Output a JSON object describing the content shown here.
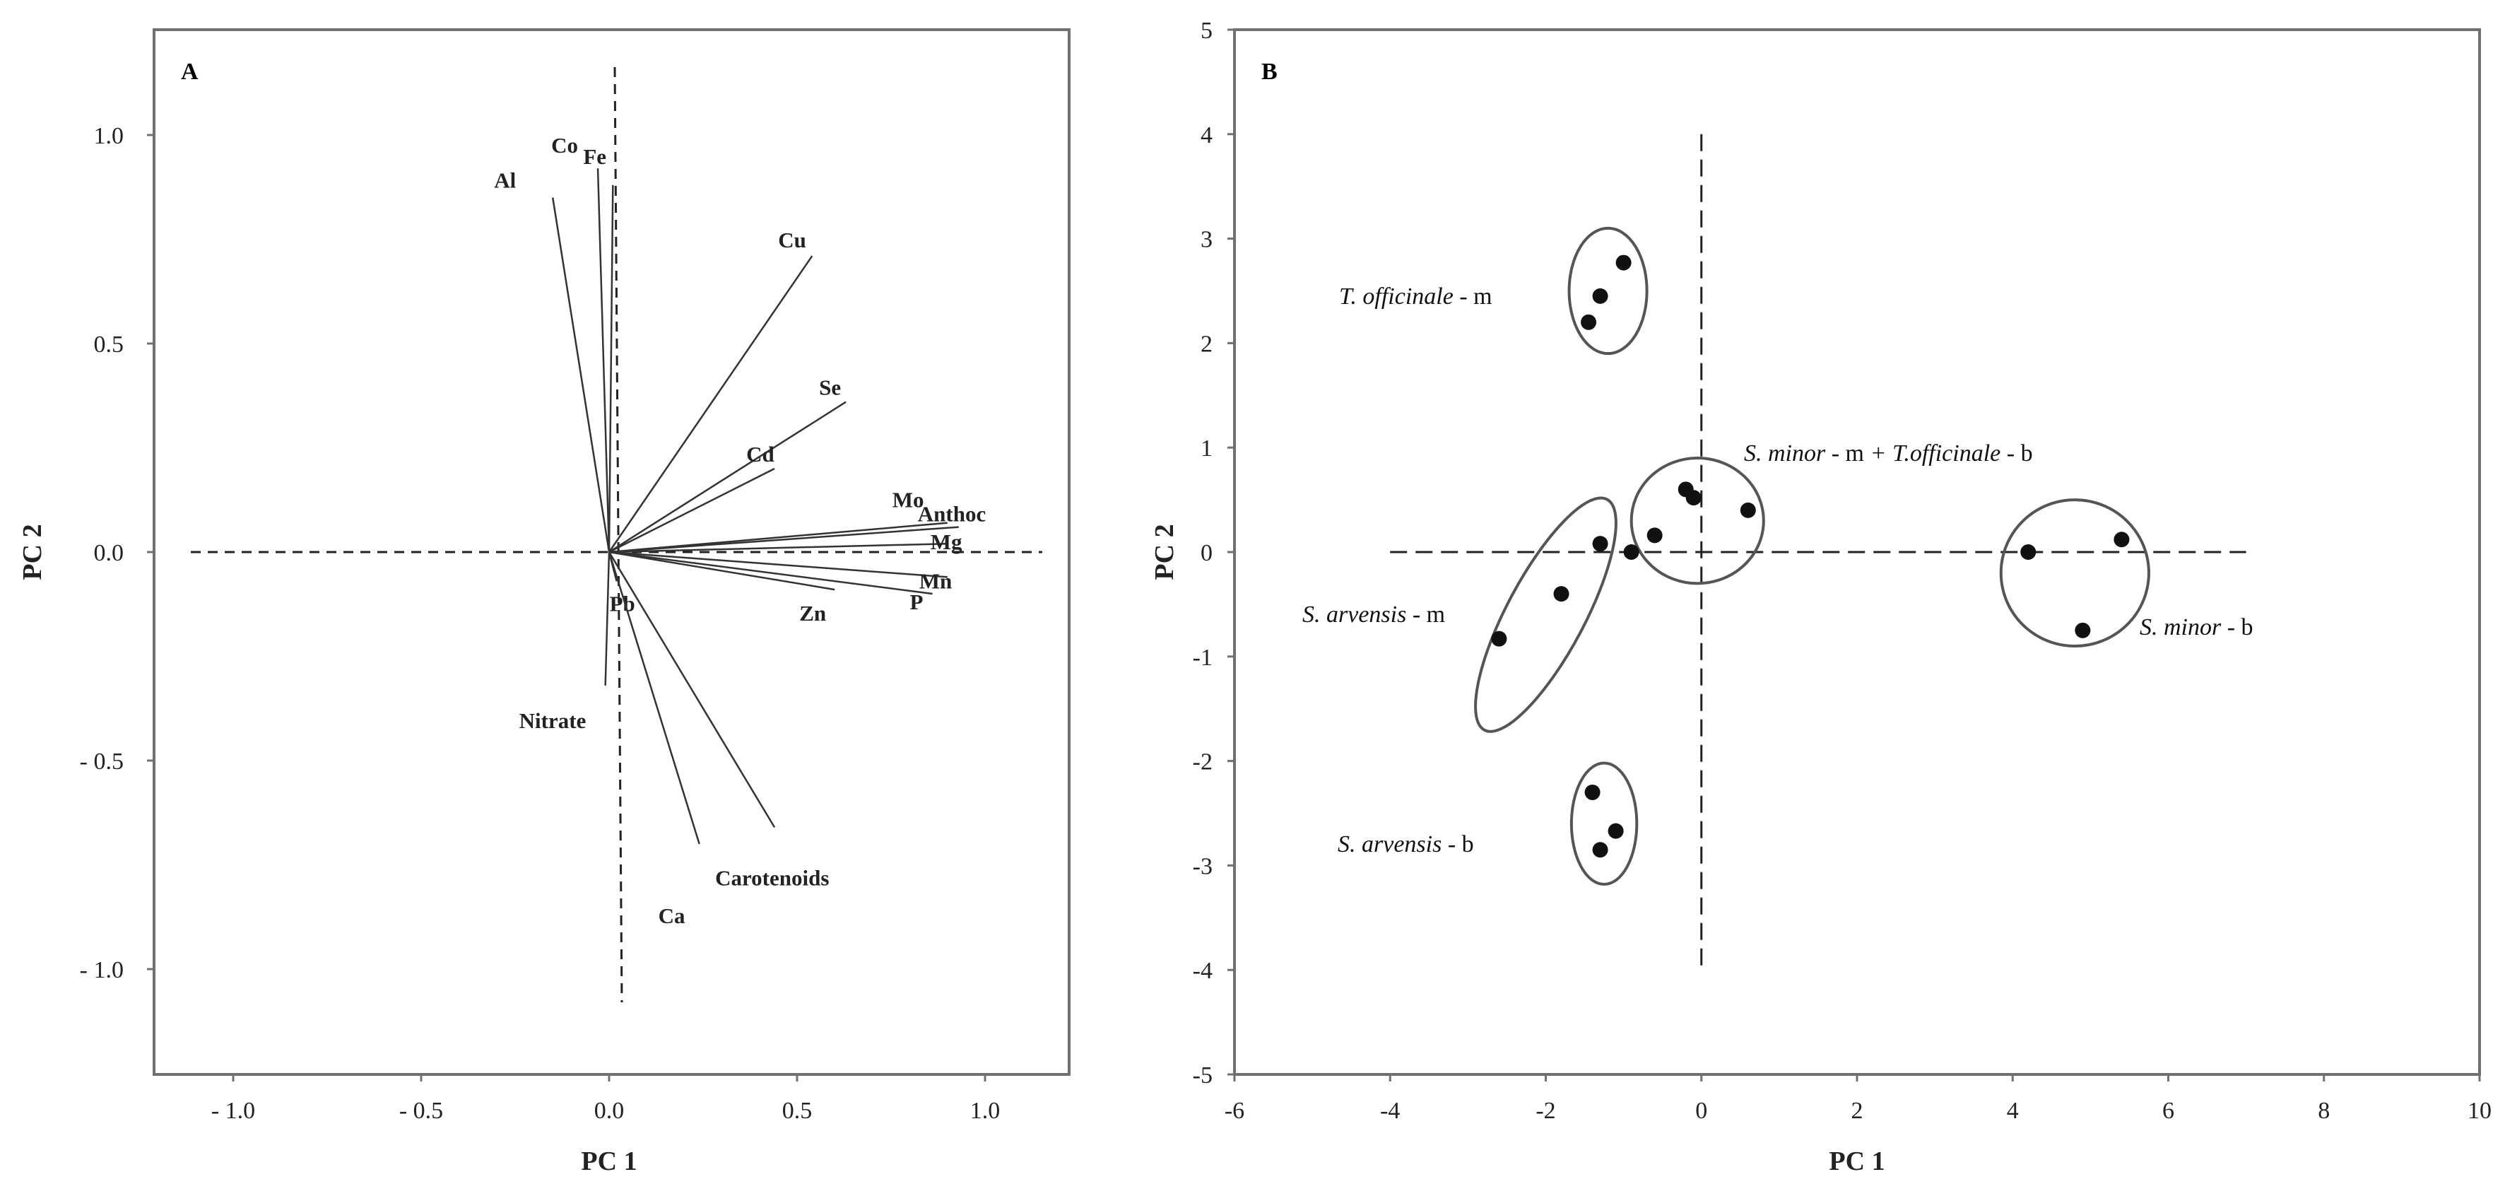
{
  "panels": [
    {
      "label": "A",
      "xlabel": "PC 1",
      "ylabel": "PC 2",
      "x_ticks": [
        "- 1.0",
        "- 0.5",
        "0.0",
        "0.5",
        "1.0"
      ],
      "y_ticks": [
        "1.0",
        "0.5",
        "0.0",
        "- 0.5",
        "- 1.0"
      ]
    },
    {
      "label": "B",
      "xlabel": "PC 1",
      "ylabel": "PC 2",
      "x_ticks": [
        "-6",
        "-4",
        "-2",
        "0",
        "2",
        "4",
        "6",
        "8",
        "10"
      ],
      "y_ticks": [
        "5",
        "4",
        "3",
        "2",
        "1",
        "0",
        "-1",
        "-2",
        "-3",
        "-4",
        "-5"
      ]
    }
  ],
  "chart_data": [
    {
      "type": "scatter",
      "subtype": "biplot-loadings",
      "title": "",
      "xlabel": "PC 1",
      "ylabel": "PC 2",
      "xlim": [
        -1.05,
        1.05
      ],
      "ylim": [
        -1.1,
        1.1
      ],
      "grid": false,
      "vectors": [
        {
          "name": "Al",
          "x": -0.15,
          "y": 0.85
        },
        {
          "name": "Co",
          "x": -0.03,
          "y": 0.92
        },
        {
          "name": "Fe",
          "x": 0.01,
          "y": 0.88
        },
        {
          "name": "Cu",
          "x": 0.54,
          "y": 0.71
        },
        {
          "name": "Se",
          "x": 0.63,
          "y": 0.36
        },
        {
          "name": "Cd",
          "x": 0.44,
          "y": 0.2
        },
        {
          "name": "Mo",
          "x": 0.9,
          "y": 0.07
        },
        {
          "name": "Anthoc",
          "x": 0.93,
          "y": 0.06
        },
        {
          "name": "Mg",
          "x": 0.9,
          "y": 0.02
        },
        {
          "name": "Mn",
          "x": 0.9,
          "y": -0.06
        },
        {
          "name": "P",
          "x": 0.86,
          "y": -0.1
        },
        {
          "name": "Zn",
          "x": 0.6,
          "y": -0.09
        },
        {
          "name": "Pb",
          "x": 0.02,
          "y": -0.07
        },
        {
          "name": "Nitrate",
          "x": -0.01,
          "y": -0.32
        },
        {
          "name": "Ca",
          "x": 0.24,
          "y": -0.7
        },
        {
          "name": "Carotenoids",
          "x": 0.44,
          "y": -0.66
        }
      ],
      "reference_lines": {
        "x": 0.0,
        "y": 0.0
      }
    },
    {
      "type": "scatter",
      "title": "",
      "xlabel": "PC 1",
      "ylabel": "PC 2",
      "xlim": [
        -6,
        10
      ],
      "ylim": [
        -5,
        5
      ],
      "grid": false,
      "series": [
        {
          "label": "T. officinale - m",
          "points": [
            [
              -1.3,
              2.45
            ],
            [
              -1.0,
              2.77
            ],
            [
              -1.45,
              2.2
            ]
          ]
        },
        {
          "label": "S. minor - m + T.officinale - b",
          "points": [
            [
              -0.2,
              0.6
            ],
            [
              -0.1,
              0.52
            ],
            [
              -0.6,
              0.16
            ],
            [
              -0.9,
              0.0
            ],
            [
              0.6,
              0.4
            ]
          ]
        },
        {
          "label": "S. arvensis - m",
          "points": [
            [
              -1.3,
              0.08
            ],
            [
              -1.8,
              -0.4
            ],
            [
              -2.6,
              -0.83
            ]
          ]
        },
        {
          "label": "S. minor - b",
          "points": [
            [
              4.2,
              0.0
            ],
            [
              5.4,
              0.12
            ],
            [
              4.9,
              -0.75
            ]
          ]
        },
        {
          "label": "S. arvensis - b",
          "points": [
            [
              -1.4,
              -2.3
            ],
            [
              -1.3,
              -2.85
            ],
            [
              -1.1,
              -2.67
            ]
          ]
        }
      ],
      "reference_lines": {
        "x": 0.0,
        "y": 0.0
      }
    }
  ]
}
